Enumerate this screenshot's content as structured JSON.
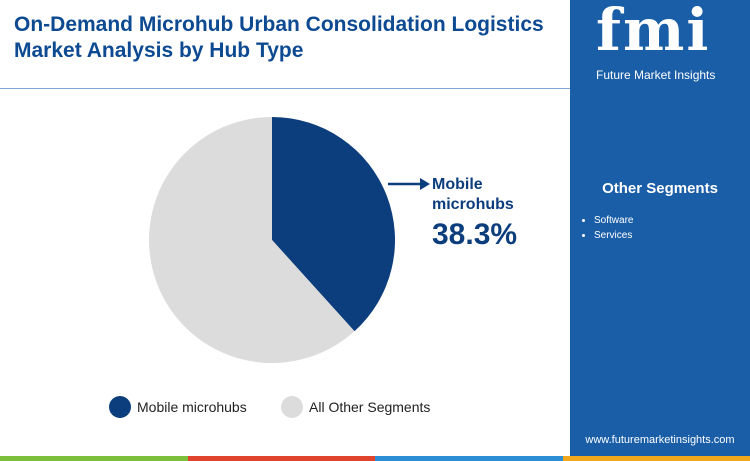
{
  "chart_data": {
    "type": "pie",
    "title": "On-Demand Microhub Urban Consolidation Logistics Market Analysis by Hub Type",
    "categories": [
      "Mobile microhubs",
      "All Other Segments"
    ],
    "values": [
      38.3,
      61.7
    ],
    "value_labels": [
      "38.3%",
      null
    ],
    "colors": [
      "#0c3d7d",
      "#dcdcdc"
    ],
    "legend": "bottom"
  },
  "sidebar": {
    "logo": "fmi",
    "brand": "Future Market Insights",
    "heading": "Other Segments",
    "items": [
      "Software",
      "Services"
    ],
    "url": "www.futuremarketinsights.com"
  }
}
